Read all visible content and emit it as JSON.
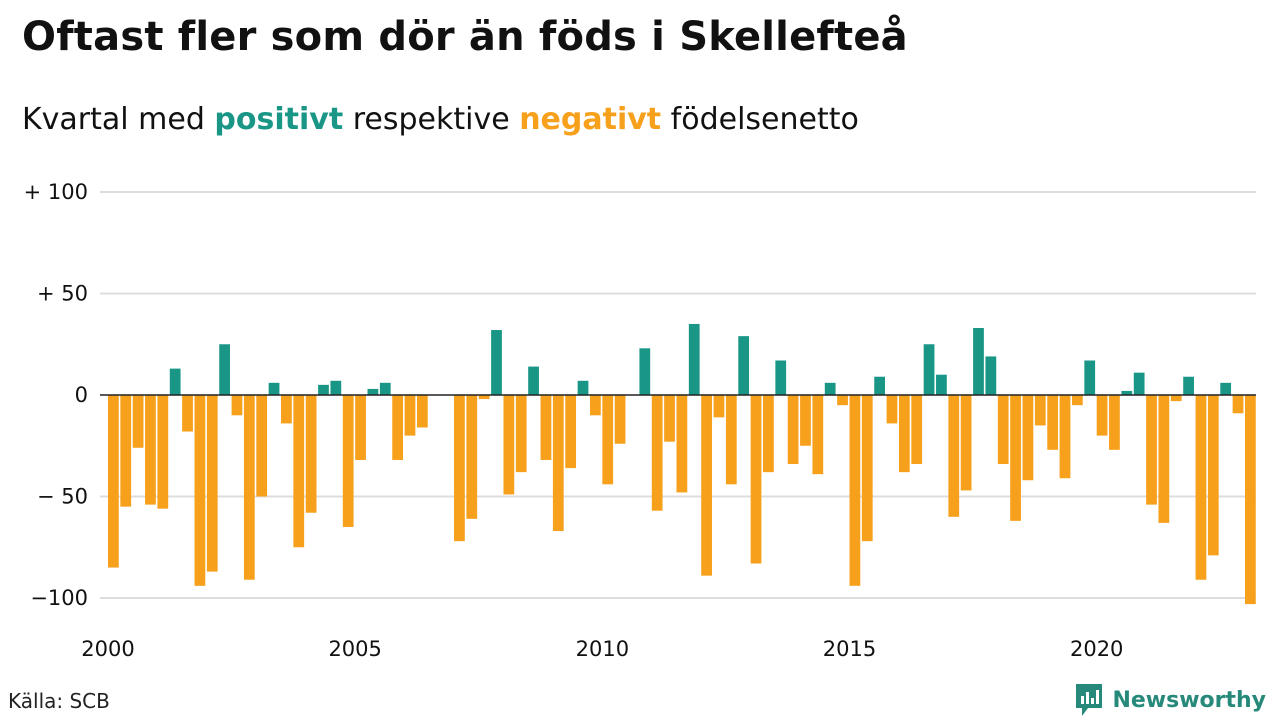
{
  "title": "Oftast fler som dör än föds i Skellefteå",
  "subtitle": {
    "part1": "Kvartal med ",
    "positive_word": "positivt",
    "part2": " respektive ",
    "negative_word": "negativt",
    "part3": " födelsenetto"
  },
  "source": "Källa: SCB",
  "brand": {
    "name": "Newsworthy",
    "icon": "newsworthy-logo-icon"
  },
  "colors": {
    "positive": "#1a9686",
    "negative": "#f7a01c",
    "grid": "#dddddd",
    "zero": "#222222",
    "brand": "#27897a"
  },
  "chart_data": {
    "type": "bar",
    "title": "Oftast fler som dör än föds i Skellefteå",
    "xlabel": "",
    "ylabel": "",
    "ylim": [
      -104,
      100
    ],
    "xlim": [
      2000.0,
      2023.0
    ],
    "grid": true,
    "legend": "none",
    "y_ticks": [
      100,
      50,
      0,
      -50,
      -100
    ],
    "y_tick_labels": [
      "+ 100",
      "+  50",
      "0",
      "− 50",
      "−100"
    ],
    "x_ticks": [
      2000,
      2005,
      2010,
      2015,
      2020
    ],
    "x_tick_labels": [
      "2000",
      "2005",
      "2010",
      "2015",
      "2020"
    ],
    "start_year": 2000,
    "quarters_per_year": 4,
    "values": [
      -85,
      -55,
      -26,
      -54,
      -56,
      13,
      -18,
      -94,
      -87,
      25,
      -10,
      -91,
      -50,
      6,
      -14,
      -75,
      -58,
      5,
      7,
      -65,
      -32,
      3,
      6,
      -32,
      -20,
      -16,
      0,
      0,
      -72,
      -61,
      -2,
      32,
      -49,
      -38,
      14,
      -32,
      -67,
      -36,
      7,
      -10,
      -44,
      -24,
      0,
      23,
      -57,
      -23,
      -48,
      35,
      -89,
      -11,
      -44,
      29,
      -83,
      -38,
      17,
      -34,
      -25,
      -39,
      6,
      -5,
      -94,
      -72,
      9,
      -14,
      -38,
      -34,
      25,
      10,
      -60,
      -47,
      33,
      19,
      -34,
      -62,
      -42,
      -15,
      -27,
      -41,
      -5,
      17,
      -20,
      -27,
      2,
      11,
      -54,
      -63,
      -3,
      9,
      -91,
      -79,
      6,
      -9,
      -103
    ]
  }
}
